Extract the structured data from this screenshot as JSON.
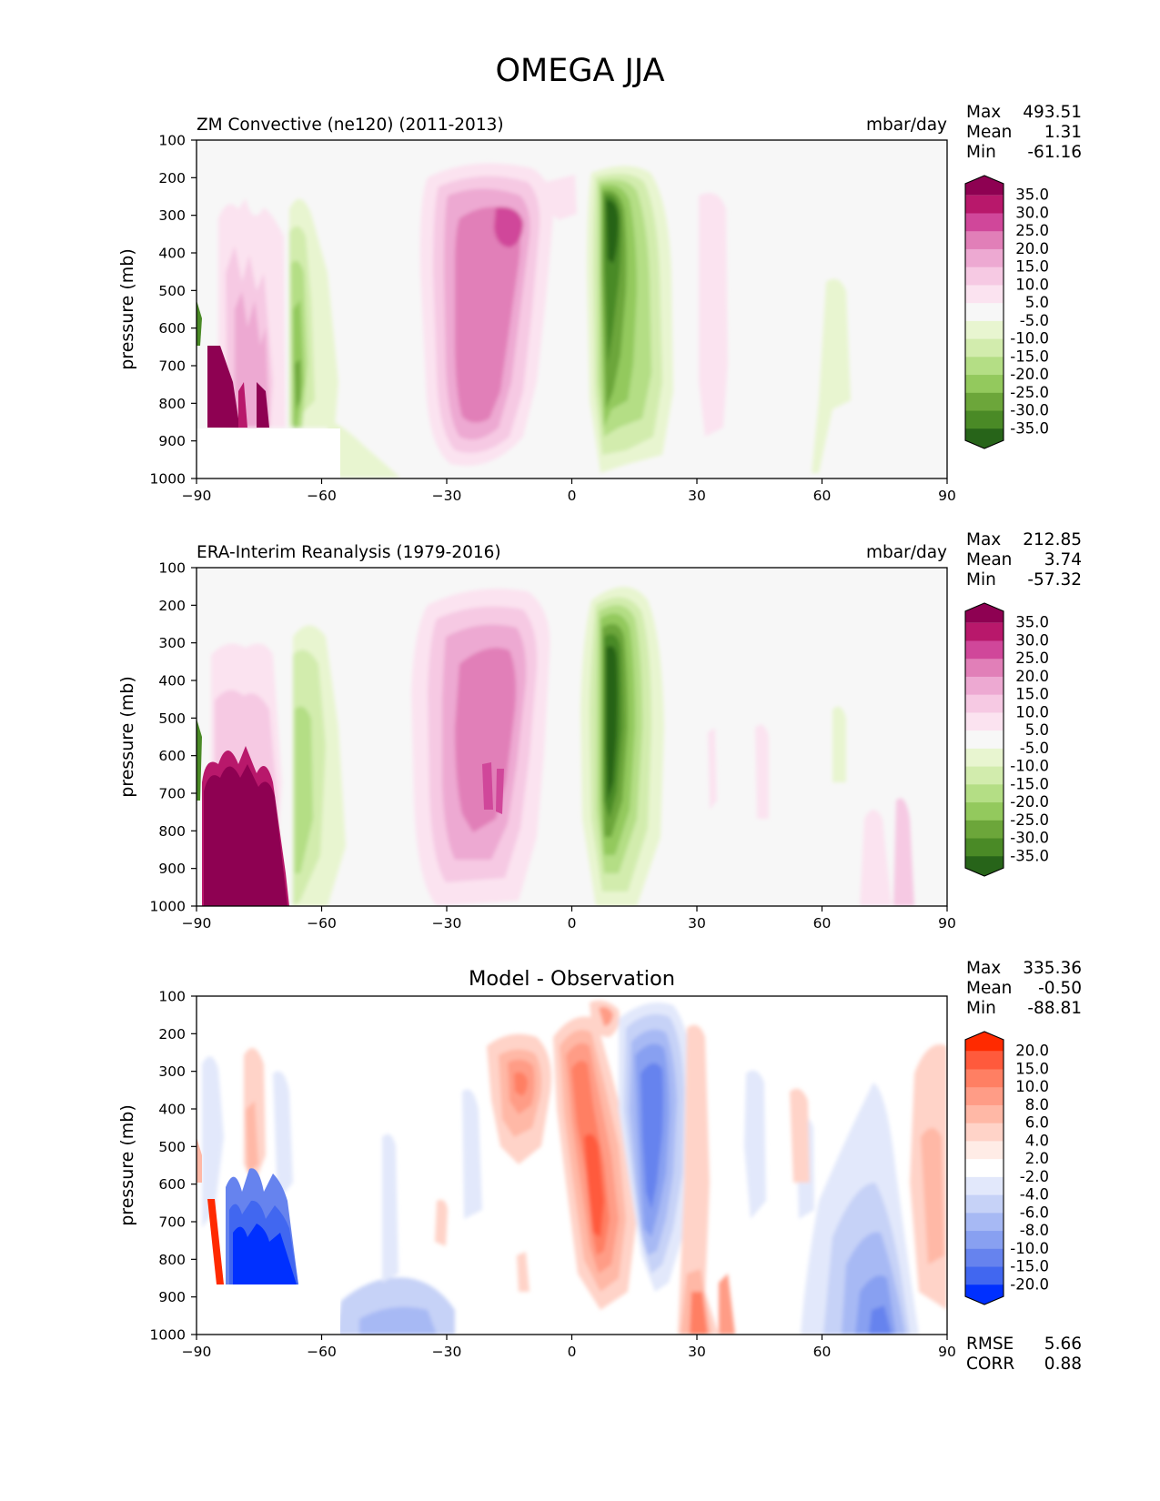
{
  "title": "OMEGA JJA",
  "chart_data": [
    {
      "type": "heatmap",
      "title": "ZM Convective (ne120) (2011-2013)",
      "units": "mbar/day",
      "xlabel": "",
      "ylabel": "pressure (mb)",
      "xlim": [
        -90,
        90
      ],
      "ylim": [
        1000,
        100
      ],
      "xticks": [
        "−90",
        "−60",
        "−30",
        "0",
        "30",
        "60",
        "90"
      ],
      "yticks": [
        "100",
        "200",
        "300",
        "400",
        "500",
        "600",
        "700",
        "800",
        "900",
        "1000"
      ],
      "stats": [
        {
          "label": "Max",
          "value": "493.51"
        },
        {
          "label": "Mean",
          "value": "1.31"
        },
        {
          "label": "Min",
          "value": "-61.16"
        }
      ],
      "colorbar": {
        "levels": [
          "35.0",
          "30.0",
          "25.0",
          "20.0",
          "15.0",
          "10.0",
          "5.0",
          "-5.0",
          "-10.0",
          "-15.0",
          "-20.0",
          "-25.0",
          "-30.0",
          "-35.0"
        ],
        "colors": [
          "#8e0152",
          "#b8186b",
          "#d0479a",
          "#e17fb8",
          "#eda9d2",
          "#f6c9e3",
          "#fbe3f0",
          "#f7f7f7",
          "#e8f5d0",
          "#d2ecad",
          "#b4de85",
          "#93c95d",
          "#6ca63a",
          "#4a8a26",
          "#276419"
        ]
      },
      "features": [
        {
          "x": -16,
          "p": 300,
          "value": 30
        },
        {
          "x": -20,
          "p": 550,
          "value": 22
        },
        {
          "x": 7,
          "p": 400,
          "value": -35
        },
        {
          "x": -84,
          "p": 770,
          "value": 40
        }
      ]
    },
    {
      "type": "heatmap",
      "title": "ERA-Interim Reanalysis (1979-2016)",
      "units": "mbar/day",
      "xlabel": "",
      "ylabel": "pressure (mb)",
      "xlim": [
        -90,
        90
      ],
      "ylim": [
        1000,
        100
      ],
      "xticks": [
        "−90",
        "−60",
        "−30",
        "0",
        "30",
        "60",
        "90"
      ],
      "yticks": [
        "100",
        "200",
        "300",
        "400",
        "500",
        "600",
        "700",
        "800",
        "900",
        "1000"
      ],
      "stats": [
        {
          "label": "Max",
          "value": "212.85"
        },
        {
          "label": "Mean",
          "value": "3.74"
        },
        {
          "label": "Min",
          "value": "-57.32"
        }
      ],
      "colorbar": {
        "levels": [
          "35.0",
          "30.0",
          "25.0",
          "20.0",
          "15.0",
          "10.0",
          "5.0",
          "-5.0",
          "-10.0",
          "-15.0",
          "-20.0",
          "-25.0",
          "-30.0",
          "-35.0"
        ],
        "colors": [
          "#8e0152",
          "#b8186b",
          "#d0479a",
          "#e17fb8",
          "#eda9d2",
          "#f6c9e3",
          "#fbe3f0",
          "#f7f7f7",
          "#e8f5d0",
          "#d2ecad",
          "#b4de85",
          "#93c95d",
          "#6ca63a",
          "#4a8a26",
          "#276419"
        ]
      },
      "features": [
        {
          "x": -18,
          "p": 600,
          "value": 25
        },
        {
          "x": 7,
          "p": 550,
          "value": -38
        },
        {
          "x": -78,
          "p": 820,
          "value": 45
        }
      ]
    },
    {
      "type": "heatmap",
      "title": "Model - Observation",
      "units": "",
      "xlabel": "",
      "ylabel": "pressure (mb)",
      "xlim": [
        -90,
        90
      ],
      "ylim": [
        1000,
        100
      ],
      "xticks": [
        "−90",
        "−60",
        "−30",
        "0",
        "30",
        "60",
        "90"
      ],
      "yticks": [
        "100",
        "200",
        "300",
        "400",
        "500",
        "600",
        "700",
        "800",
        "900",
        "1000"
      ],
      "stats": [
        {
          "label": "Max",
          "value": "335.36"
        },
        {
          "label": "Mean",
          "value": "-0.50"
        },
        {
          "label": "Min",
          "value": "-88.81"
        }
      ],
      "metrics": [
        {
          "label": "RMSE",
          "value": "5.66"
        },
        {
          "label": "CORR",
          "value": "0.88"
        }
      ],
      "colorbar": {
        "levels": [
          "20.0",
          "15.0",
          "10.0",
          "8.0",
          "6.0",
          "4.0",
          "2.0",
          "-2.0",
          "-4.0",
          "-6.0",
          "-8.0",
          "-10.0",
          "-15.0",
          "-20.0"
        ],
        "colors": [
          "#ff2a00",
          "#ff5a3c",
          "#ff7f63",
          "#ff9c86",
          "#ffb8a6",
          "#ffd3c8",
          "#ffecE6",
          "#ffffff",
          "#e2e8fb",
          "#c6d2f7",
          "#a7b9f4",
          "#88a0f1",
          "#6683ee",
          "#4167f0",
          "#0030ff"
        ]
      },
      "features": [
        {
          "x": 6,
          "p": 550,
          "value": 12
        },
        {
          "x": 21,
          "p": 450,
          "value": -14
        },
        {
          "x": -11,
          "p": 320,
          "value": 10
        },
        {
          "x": -76,
          "p": 780,
          "value": -25
        },
        {
          "x": 72,
          "p": 900,
          "value": -12
        }
      ]
    }
  ]
}
